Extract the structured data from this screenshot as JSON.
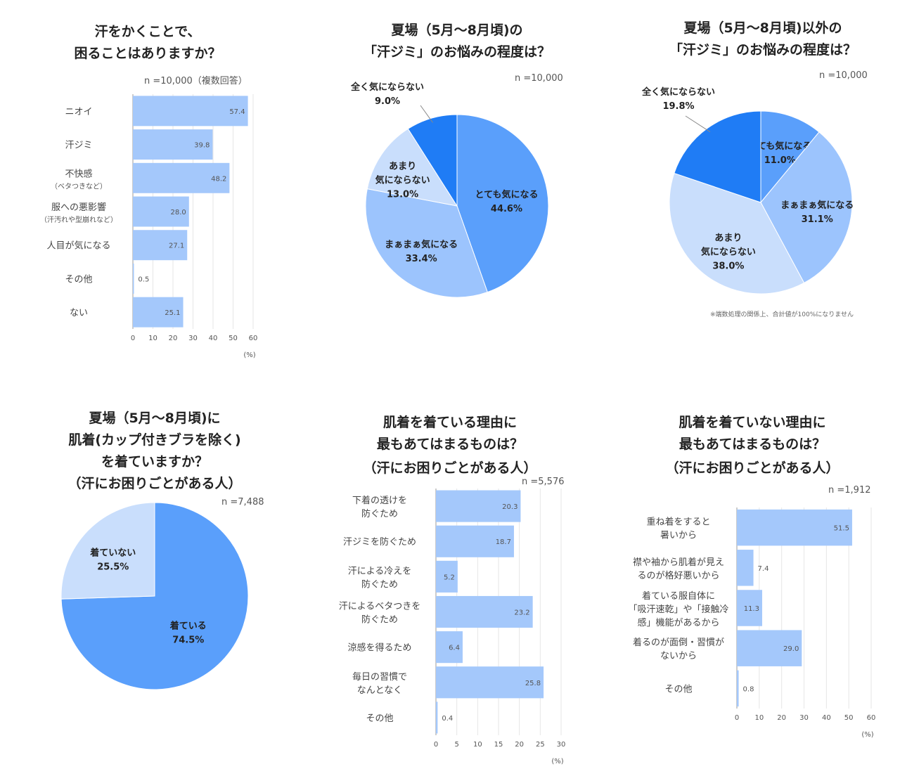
{
  "chart_data": [
    {
      "type": "bar",
      "title": "汗をかくことで、\n困ることはありますか？",
      "n": "n =10,000（複数回答）",
      "categories": [
        "ニオイ",
        "汗ジミ",
        "不快感",
        "服への悪影響",
        "人目が気になる",
        "その他",
        "ない"
      ],
      "sublabels": [
        "",
        "",
        "（ベタつきなど）",
        "（汗汚れや型崩れなど）",
        "",
        "",
        ""
      ],
      "values": [
        57.4,
        39.8,
        48.2,
        28.0,
        27.1,
        0.5,
        25.1
      ],
      "value_labels": [
        "57.4",
        "39.8",
        "48.2",
        "28.0",
        "27.1",
        "0.5",
        "25.1"
      ],
      "xlim": [
        0,
        60
      ],
      "xticks": [
        "0",
        "10",
        "20",
        "30",
        "40",
        "50",
        "60"
      ],
      "unit": "(%)",
      "grid": true
    },
    {
      "type": "pie",
      "title": "夏場（5月〜8月頃)の\n「汗ジミ」のお悩みの程度は？",
      "n": "n =10,000",
      "slices": [
        {
          "label": "とても気になる",
          "value": 44.6,
          "value_label": "44.6%"
        },
        {
          "label": "まぁまぁ気になる",
          "value": 33.4,
          "value_label": "33.4%"
        },
        {
          "label": "あまり\n気にならない",
          "value": 13.0,
          "value_label": "13.0%"
        },
        {
          "label": "全く気にならない",
          "value": 9.0,
          "value_label": "9.0%"
        }
      ]
    },
    {
      "type": "pie",
      "title": "夏場（5月〜8月頃)以外の\n「汗ジミ」のお悩みの程度は？",
      "n": "n =10,000",
      "footnote": "※端数処理の関係上、合計値が100%になりません",
      "slices": [
        {
          "label": "とても気になる",
          "value": 11.0,
          "value_label": "11.0%"
        },
        {
          "label": "まぁまぁ気になる",
          "value": 31.1,
          "value_label": "31.1%"
        },
        {
          "label": "あまり\n気にならない",
          "value": 38.0,
          "value_label": "38.0%"
        },
        {
          "label": "全く気にならない",
          "value": 19.8,
          "value_label": "19.8%"
        }
      ]
    },
    {
      "type": "pie",
      "title": "夏場（5月〜8月頃)に\n肌着(カップ付きブラを除く)\nを着ていますか？",
      "subtitle": "（汗にお困りごとがある人）",
      "n": "n =7,488",
      "slices": [
        {
          "label": "着ている",
          "value": 74.5,
          "value_label": "74.5%"
        },
        {
          "label": "着ていない",
          "value": 25.5,
          "value_label": "25.5%"
        }
      ]
    },
    {
      "type": "bar",
      "title": "肌着を着ている理由に\n最もあてはまるものは？",
      "subtitle": "（汗にお困りごとがある人）",
      "n": "n =5,576",
      "categories": [
        "下着の透けを\n防ぐため",
        "汗ジミを防ぐため",
        "汗による冷えを\n防ぐため",
        "汗によるベタつきを\n防ぐため",
        "涼感を得るため",
        "毎日の習慣で\nなんとなく",
        "その他"
      ],
      "values": [
        20.3,
        18.7,
        5.2,
        23.2,
        6.4,
        25.8,
        0.4
      ],
      "value_labels": [
        "20.3",
        "18.7",
        "5.2",
        "23.2",
        "6.4",
        "25.8",
        "0.4"
      ],
      "xlim": [
        0,
        30
      ],
      "xticks": [
        "0",
        "5",
        "10",
        "15",
        "20",
        "25",
        "30"
      ],
      "unit": "(%)",
      "grid": true
    },
    {
      "type": "bar",
      "title": "肌着を着ていない理由に\n最もあてはまるものは？",
      "subtitle": "（汗にお困りごとがある人）",
      "n": "n =1,912",
      "categories": [
        "重ね着をすると\n暑いから",
        "襟や袖から肌着が見え\nるのが格好悪いから",
        "着ている服自体に\n「吸汗速乾」や「接触冷\n感」機能があるから",
        "着るのが面倒・習慣が\nないから",
        "その他"
      ],
      "values": [
        51.5,
        7.4,
        11.3,
        29.0,
        0.8
      ],
      "value_labels": [
        "51.5",
        "7.4",
        "11.3",
        "29.0",
        "0.8"
      ],
      "xlim": [
        0,
        60
      ],
      "xticks": [
        "0",
        "10",
        "20",
        "30",
        "40",
        "50",
        "60"
      ],
      "unit": "(%)",
      "grid": true
    }
  ],
  "colors": {
    "bar": "#a4c8fb",
    "pie_dark": "#1f7cf5",
    "pie_mid": "#5a9ffb",
    "pie_light": "#9cc4fd",
    "pie_pale": "#c9defc"
  }
}
